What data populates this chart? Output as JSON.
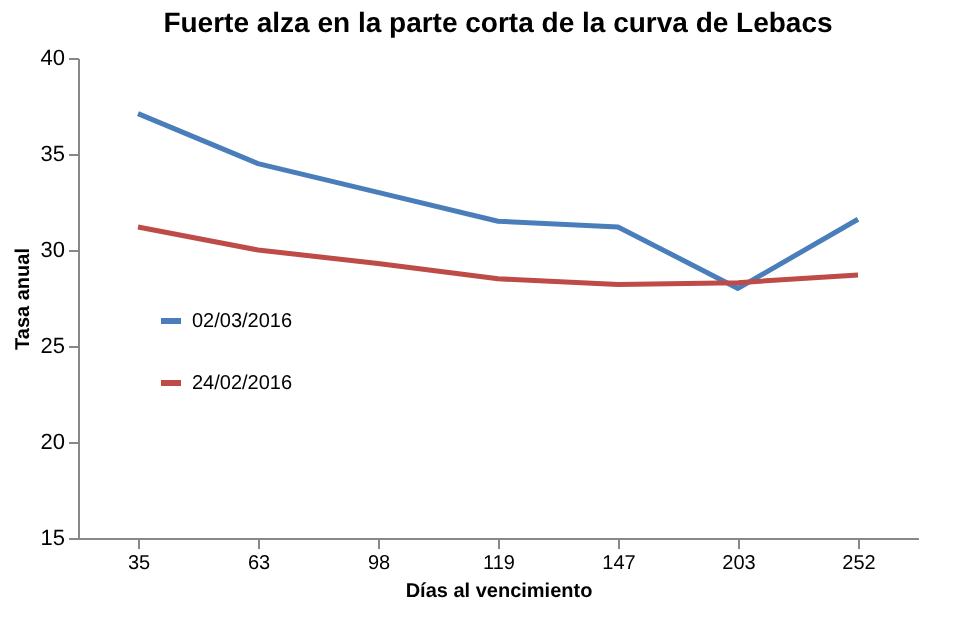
{
  "chart_data": {
    "type": "line",
    "title": "Fuerte alza en la parte corta de la curva de Lebacs",
    "xlabel": "Días al vencimiento",
    "ylabel": "Tasa anual",
    "categories": [
      "35",
      "63",
      "98",
      "119",
      "147",
      "203",
      "252"
    ],
    "series": [
      {
        "name": "02/03/2016",
        "color": "#4a7ebb",
        "values": [
          37.1,
          34.5,
          33.0,
          31.5,
          31.2,
          28.0,
          31.6
        ]
      },
      {
        "name": "24/02/2016",
        "color": "#be4b48",
        "values": [
          31.2,
          30.0,
          29.3,
          28.5,
          28.2,
          28.3,
          28.7
        ]
      }
    ],
    "ylim": [
      15,
      40
    ],
    "yticks": [
      15,
      20,
      25,
      30,
      35,
      40
    ],
    "grid": false,
    "legend": "left",
    "marker": "none",
    "line_style": "solid"
  }
}
